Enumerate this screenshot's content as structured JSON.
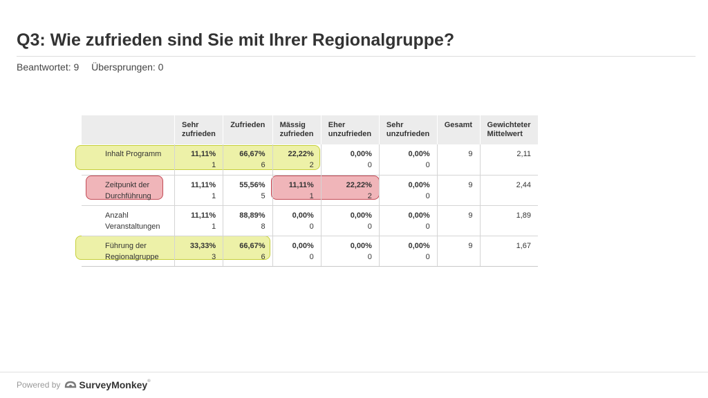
{
  "title": "Q3: Wie zufrieden sind Sie mit Ihrer Regionalgruppe?",
  "stats": {
    "answered": "Beantwortet: 9",
    "skipped": "Übersprungen: 0"
  },
  "table": {
    "headers": [
      "",
      "Sehr zufrieden",
      "Zufrieden",
      "Mässig zufrieden",
      "Eher unzufrieden",
      "Sehr unzufrieden",
      "Gesamt",
      "Gewichteter Mittelwert"
    ],
    "rows": [
      {
        "label": "Inhalt Programm",
        "cells": [
          {
            "pct": "11,11%",
            "n": "1"
          },
          {
            "pct": "66,67%",
            "n": "6"
          },
          {
            "pct": "22,22%",
            "n": "2"
          },
          {
            "pct": "0,00%",
            "n": "0"
          },
          {
            "pct": "0,00%",
            "n": "0"
          }
        ],
        "total": "9",
        "mean": "2,11"
      },
      {
        "label": "Zeitpunkt der Durchführung",
        "cells": [
          {
            "pct": "11,11%",
            "n": "1"
          },
          {
            "pct": "55,56%",
            "n": "5"
          },
          {
            "pct": "11,11%",
            "n": "1"
          },
          {
            "pct": "22,22%",
            "n": "2"
          },
          {
            "pct": "0,00%",
            "n": "0"
          }
        ],
        "total": "9",
        "mean": "2,44"
      },
      {
        "label": "Anzahl Veranstaltungen",
        "cells": [
          {
            "pct": "11,11%",
            "n": "1"
          },
          {
            "pct": "88,89%",
            "n": "8"
          },
          {
            "pct": "0,00%",
            "n": "0"
          },
          {
            "pct": "0,00%",
            "n": "0"
          },
          {
            "pct": "0,00%",
            "n": "0"
          }
        ],
        "total": "9",
        "mean": "1,89"
      },
      {
        "label": "Führung der Regionalgruppe",
        "cells": [
          {
            "pct": "33,33%",
            "n": "3"
          },
          {
            "pct": "66,67%",
            "n": "6"
          },
          {
            "pct": "0,00%",
            "n": "0"
          },
          {
            "pct": "0,00%",
            "n": "0"
          },
          {
            "pct": "0,00%",
            "n": "0"
          }
        ],
        "total": "9",
        "mean": "1,67"
      }
    ]
  },
  "highlights": {
    "yellow": "#dee660",
    "red": "#de5a64"
  },
  "footer": {
    "powered_by": "Powered by",
    "brand": "SurveyMonkey",
    "trademark": "®",
    "logo_icon": "surveymonkey-logo-icon",
    "logo_color": "#7a7a7a"
  }
}
